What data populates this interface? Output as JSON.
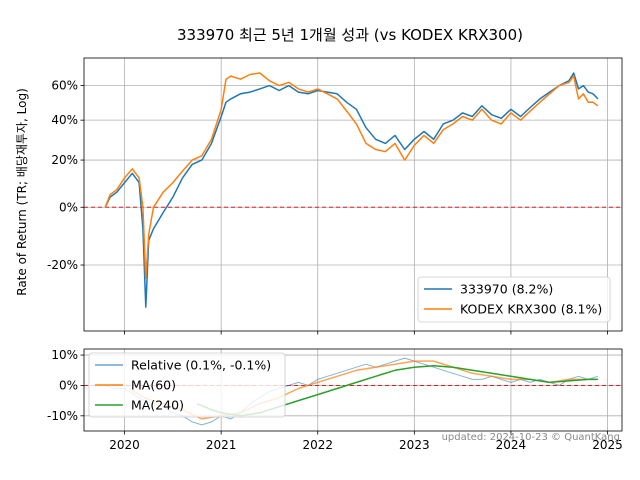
{
  "chart_data": [
    {
      "type": "line",
      "title": "333970 최근 5년 1개월 성과 (vs KODEX KRX300)",
      "ylabel": "Rate of Return (TR; 배당재투자, Log)",
      "yscale": "log(1+r)",
      "ylim": [
        -0.38,
        0.78
      ],
      "yticks": [
        -0.2,
        0,
        0.2,
        0.4,
        0.6
      ],
      "ytick_labels": [
        "-20%",
        "0%",
        "20%",
        "40%",
        "60%"
      ],
      "xlim": [
        2019.58,
        2025.15
      ],
      "xticks": [
        2020,
        2021,
        2022,
        2023,
        2024,
        2025
      ],
      "xtick_labels": [
        "2020",
        "2021",
        "2022",
        "2023",
        "2024",
        "2025"
      ],
      "grid": true,
      "legend_position": "bottom-right",
      "zero_line_color": "#e41a1c",
      "series": [
        {
          "name": "333970 (8.2%)",
          "color": "#1f77b4",
          "x": [
            2019.8,
            2019.85,
            2019.92,
            2020.0,
            2020.08,
            2020.15,
            2020.19,
            2020.22,
            2020.25,
            2020.3,
            2020.4,
            2020.5,
            2020.6,
            2020.7,
            2020.8,
            2020.9,
            2021.0,
            2021.05,
            2021.1,
            2021.2,
            2021.3,
            2021.4,
            2021.5,
            2021.6,
            2021.7,
            2021.8,
            2021.9,
            2022.0,
            2022.1,
            2022.2,
            2022.3,
            2022.4,
            2022.5,
            2022.6,
            2022.7,
            2022.8,
            2022.9,
            2023.0,
            2023.1,
            2023.2,
            2023.3,
            2023.4,
            2023.5,
            2023.6,
            2023.7,
            2023.8,
            2023.9,
            2024.0,
            2024.1,
            2024.2,
            2024.3,
            2024.4,
            2024.5,
            2024.6,
            2024.65,
            2024.7,
            2024.75,
            2024.8,
            2024.85,
            2024.9
          ],
          "y": [
            0.0,
            0.04,
            0.06,
            0.1,
            0.14,
            0.1,
            -0.08,
            -0.32,
            -0.12,
            -0.08,
            -0.02,
            0.04,
            0.12,
            0.18,
            0.2,
            0.28,
            0.42,
            0.5,
            0.52,
            0.55,
            0.56,
            0.58,
            0.6,
            0.57,
            0.6,
            0.56,
            0.55,
            0.57,
            0.56,
            0.55,
            0.5,
            0.46,
            0.36,
            0.3,
            0.28,
            0.32,
            0.25,
            0.3,
            0.34,
            0.3,
            0.38,
            0.4,
            0.44,
            0.42,
            0.48,
            0.43,
            0.41,
            0.46,
            0.42,
            0.47,
            0.52,
            0.56,
            0.6,
            0.63,
            0.68,
            0.58,
            0.6,
            0.56,
            0.55,
            0.52
          ]
        },
        {
          "name": "KODEX KRX300 (8.1%)",
          "color": "#ff7f0e",
          "x": [
            2019.8,
            2019.85,
            2019.92,
            2020.0,
            2020.08,
            2020.15,
            2020.19,
            2020.22,
            2020.25,
            2020.3,
            2020.4,
            2020.5,
            2020.6,
            2020.7,
            2020.8,
            2020.9,
            2021.0,
            2021.05,
            2021.1,
            2021.2,
            2021.3,
            2021.4,
            2021.5,
            2021.6,
            2021.7,
            2021.8,
            2021.9,
            2022.0,
            2022.1,
            2022.2,
            2022.3,
            2022.4,
            2022.5,
            2022.6,
            2022.7,
            2022.8,
            2022.9,
            2023.0,
            2023.1,
            2023.2,
            2023.3,
            2023.4,
            2023.5,
            2023.6,
            2023.7,
            2023.8,
            2023.9,
            2024.0,
            2024.1,
            2024.2,
            2024.3,
            2024.4,
            2024.5,
            2024.6,
            2024.65,
            2024.7,
            2024.75,
            2024.8,
            2024.85,
            2024.9
          ],
          "y": [
            0.0,
            0.05,
            0.07,
            0.12,
            0.16,
            0.12,
            0.0,
            -0.24,
            -0.1,
            0.0,
            0.06,
            0.1,
            0.15,
            0.2,
            0.22,
            0.3,
            0.46,
            0.64,
            0.66,
            0.64,
            0.67,
            0.68,
            0.63,
            0.6,
            0.62,
            0.58,
            0.56,
            0.58,
            0.55,
            0.52,
            0.45,
            0.38,
            0.28,
            0.25,
            0.24,
            0.28,
            0.2,
            0.27,
            0.32,
            0.28,
            0.35,
            0.38,
            0.42,
            0.4,
            0.46,
            0.4,
            0.38,
            0.44,
            0.4,
            0.45,
            0.5,
            0.55,
            0.6,
            0.62,
            0.66,
            0.52,
            0.55,
            0.5,
            0.5,
            0.48
          ]
        }
      ]
    },
    {
      "type": "line",
      "ylim": [
        -0.15,
        0.12
      ],
      "yticks": [
        -0.1,
        0,
        0.1
      ],
      "ytick_labels": [
        "-10%",
        "0%",
        "10%"
      ],
      "xlim": [
        2019.58,
        2025.15
      ],
      "grid": true,
      "legend_position": "top-left",
      "zero_line_color": "#e41a1c",
      "series": [
        {
          "name": "Relative (0.1%, -0.1%)",
          "color": "#1f77b4",
          "x": [
            2019.8,
            2019.9,
            2020.0,
            2020.1,
            2020.2,
            2020.3,
            2020.4,
            2020.5,
            2020.6,
            2020.7,
            2020.8,
            2020.9,
            2021.0,
            2021.1,
            2021.2,
            2021.3,
            2021.4,
            2021.5,
            2021.6,
            2021.7,
            2021.8,
            2021.9,
            2022.0,
            2022.1,
            2022.2,
            2022.3,
            2022.4,
            2022.5,
            2022.6,
            2022.7,
            2022.8,
            2022.9,
            2023.0,
            2023.1,
            2023.2,
            2023.3,
            2023.4,
            2023.5,
            2023.6,
            2023.7,
            2023.8,
            2023.9,
            2024.0,
            2024.1,
            2024.2,
            2024.3,
            2024.4,
            2024.5,
            2024.6,
            2024.7,
            2024.8,
            2024.9
          ],
          "y": [
            0.0,
            -0.01,
            -0.01,
            -0.03,
            -0.05,
            -0.06,
            -0.07,
            -0.09,
            -0.1,
            -0.12,
            -0.13,
            -0.12,
            -0.1,
            -0.11,
            -0.09,
            -0.06,
            -0.04,
            -0.02,
            -0.01,
            0.0,
            0.01,
            0.0,
            0.02,
            0.03,
            0.04,
            0.05,
            0.06,
            0.07,
            0.06,
            0.07,
            0.08,
            0.09,
            0.08,
            0.07,
            0.06,
            0.05,
            0.04,
            0.03,
            0.02,
            0.02,
            0.03,
            0.02,
            0.01,
            0.02,
            0.01,
            0.02,
            0.01,
            0.0,
            0.02,
            0.03,
            0.02,
            0.03
          ]
        },
        {
          "name": "MA(60)",
          "color": "#ff7f0e",
          "x": [
            2020.05,
            2020.2,
            2020.4,
            2020.6,
            2020.8,
            2021.0,
            2021.2,
            2021.4,
            2021.6,
            2021.8,
            2022.0,
            2022.2,
            2022.4,
            2022.6,
            2022.8,
            2023.0,
            2023.2,
            2023.4,
            2023.6,
            2023.8,
            2024.0,
            2024.2,
            2024.4,
            2024.6,
            2024.8,
            2024.9
          ],
          "y": [
            -0.01,
            -0.04,
            -0.06,
            -0.08,
            -0.11,
            -0.1,
            -0.09,
            -0.06,
            -0.04,
            -0.01,
            0.01,
            0.03,
            0.05,
            0.06,
            0.07,
            0.08,
            0.08,
            0.06,
            0.04,
            0.03,
            0.02,
            0.02,
            0.01,
            0.02,
            0.02,
            0.02
          ]
        },
        {
          "name": "MA(240)",
          "color": "#2ca02c",
          "x": [
            2020.75,
            2020.9,
            2021.0,
            2021.2,
            2021.4,
            2021.6,
            2021.8,
            2022.0,
            2022.2,
            2022.4,
            2022.6,
            2022.8,
            2023.0,
            2023.2,
            2023.4,
            2023.6,
            2023.8,
            2024.0,
            2024.2,
            2024.4,
            2024.6,
            2024.8,
            2024.9
          ],
          "y": [
            -0.06,
            -0.08,
            -0.09,
            -0.1,
            -0.09,
            -0.07,
            -0.05,
            -0.03,
            -0.01,
            0.01,
            0.03,
            0.05,
            0.06,
            0.065,
            0.06,
            0.05,
            0.04,
            0.03,
            0.02,
            0.01,
            0.015,
            0.02,
            0.02
          ]
        }
      ]
    }
  ],
  "footer": "updated: 2024-10-23 © QuantKang"
}
